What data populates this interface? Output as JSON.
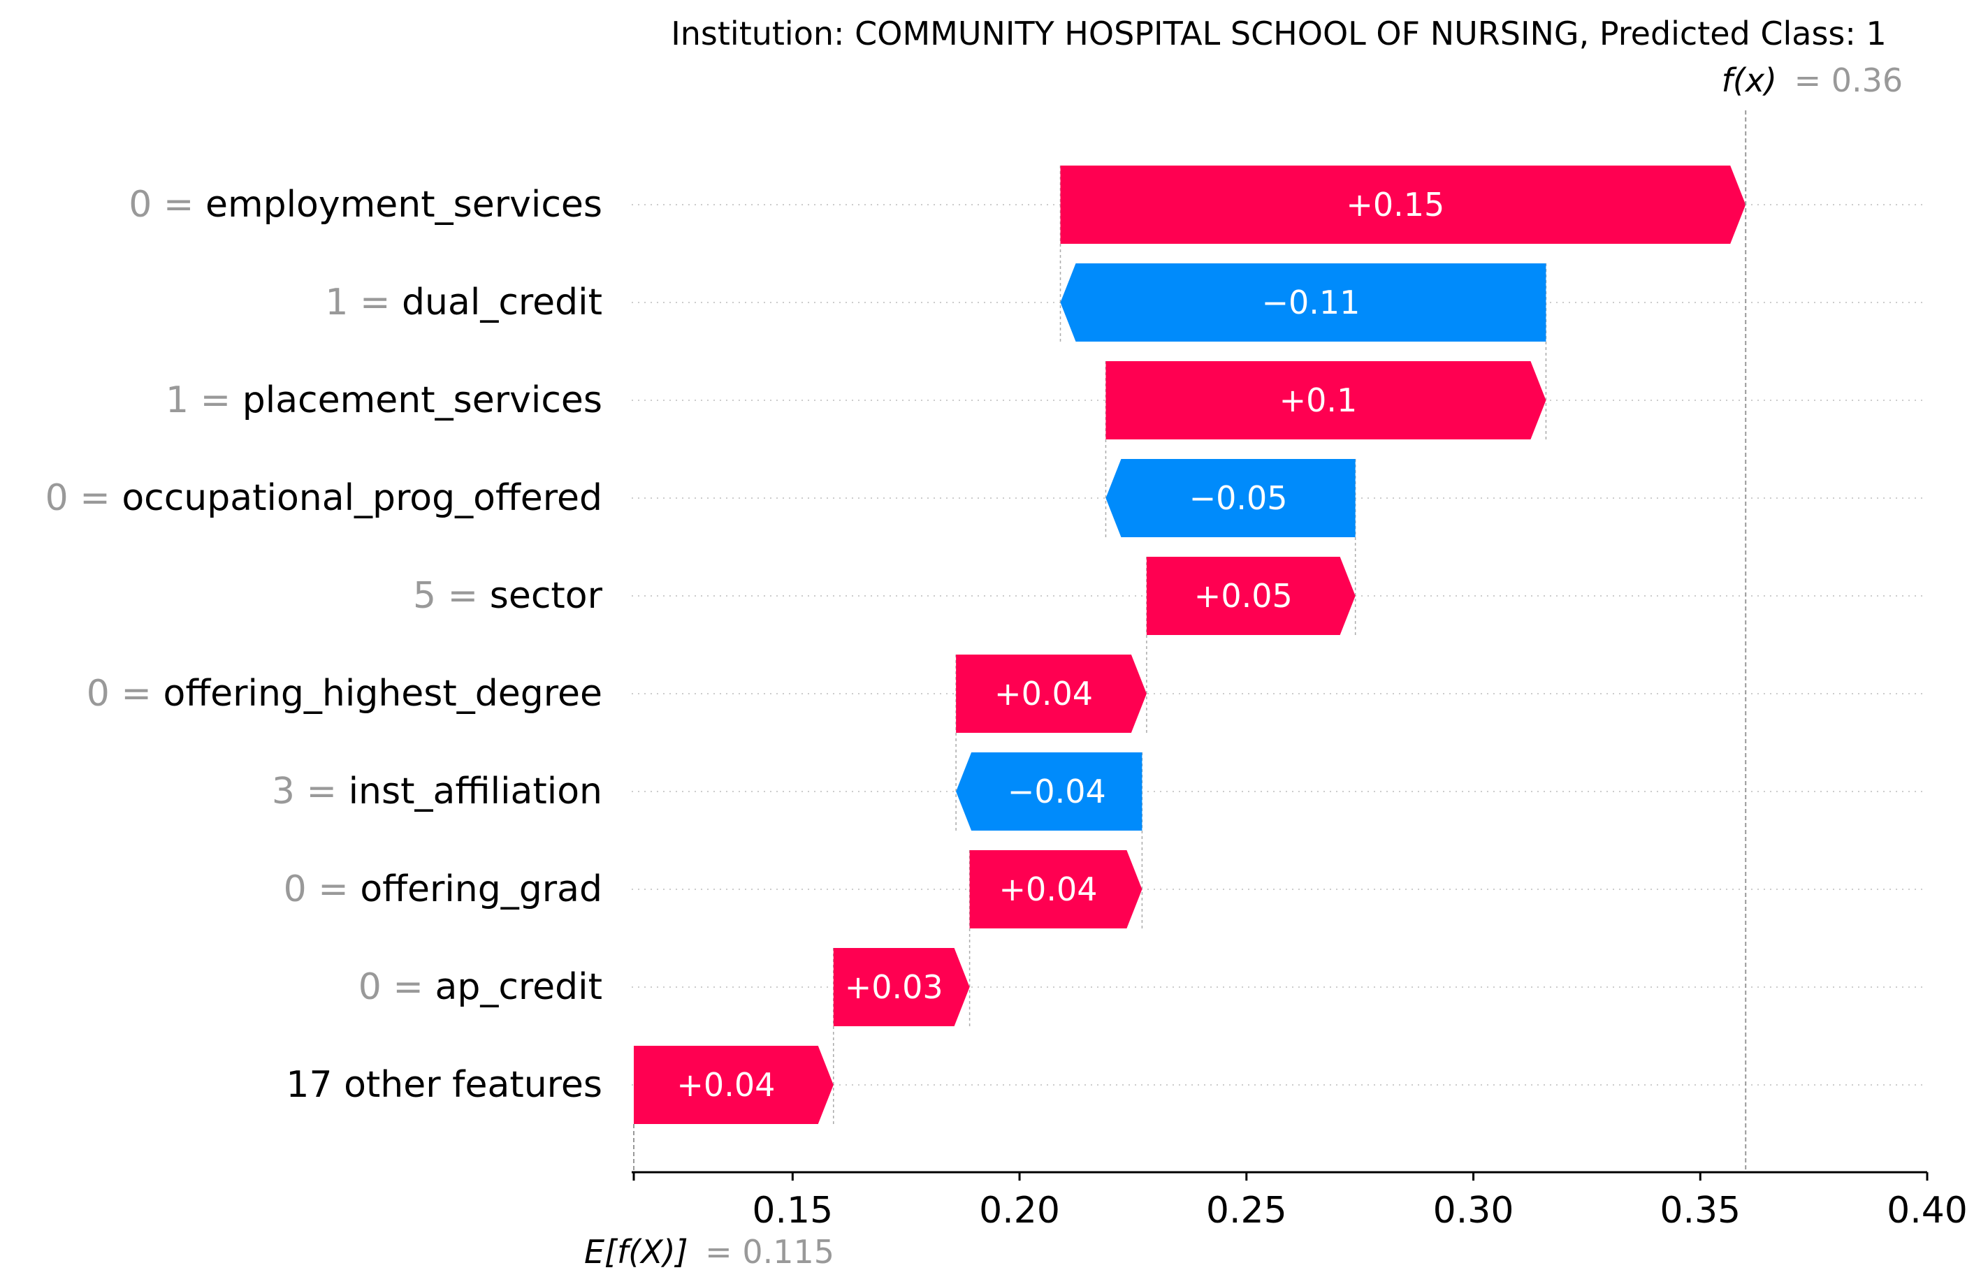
{
  "chart_data": {
    "type": "waterfall",
    "title": "Institution: COMMUNITY HOSPITAL SCHOOL OF NURSING, Predicted Class: 1",
    "fx_label": "f(x)",
    "fx_value": 0.36,
    "fx_value_text": "= 0.36",
    "base_label": "E[f(X)]",
    "base_value": 0.115,
    "base_value_text": "= 0.115",
    "xlim": [
      0.115,
      0.4
    ],
    "xticks": [
      0.15,
      0.2,
      0.25,
      0.3,
      0.35,
      0.4
    ],
    "xtick_labels": [
      "0.15",
      "0.20",
      "0.25",
      "0.30",
      "0.35",
      "0.40"
    ],
    "grid": "horizontal dotted",
    "colors": {
      "positive": "#ff0051",
      "negative": "#008bfb",
      "label_value": "#999999",
      "text": "#000000"
    },
    "features": [
      {
        "value_text": "0",
        "name": "employment_services",
        "start": 0.209,
        "end": 0.36,
        "label": "+0.15"
      },
      {
        "value_text": "1",
        "name": "dual_credit",
        "start": 0.316,
        "end": 0.209,
        "label": "−0.11"
      },
      {
        "value_text": "1",
        "name": "placement_services",
        "start": 0.219,
        "end": 0.316,
        "label": "+0.1"
      },
      {
        "value_text": "0",
        "name": "occupational_prog_offered",
        "start": 0.274,
        "end": 0.219,
        "label": "−0.05"
      },
      {
        "value_text": "5",
        "name": "sector",
        "start": 0.228,
        "end": 0.274,
        "label": "+0.05"
      },
      {
        "value_text": "0",
        "name": "offering_highest_degree",
        "start": 0.186,
        "end": 0.228,
        "label": "+0.04"
      },
      {
        "value_text": "3",
        "name": "inst_affiliation",
        "start": 0.227,
        "end": 0.186,
        "label": "−0.04"
      },
      {
        "value_text": "0",
        "name": "offering_grad",
        "start": 0.189,
        "end": 0.227,
        "label": "+0.04"
      },
      {
        "value_text": "0",
        "name": "ap_credit",
        "start": 0.159,
        "end": 0.189,
        "label": "+0.03"
      },
      {
        "value_text": "",
        "name": "17 other features",
        "start": 0.115,
        "end": 0.159,
        "label": "+0.04"
      }
    ]
  }
}
